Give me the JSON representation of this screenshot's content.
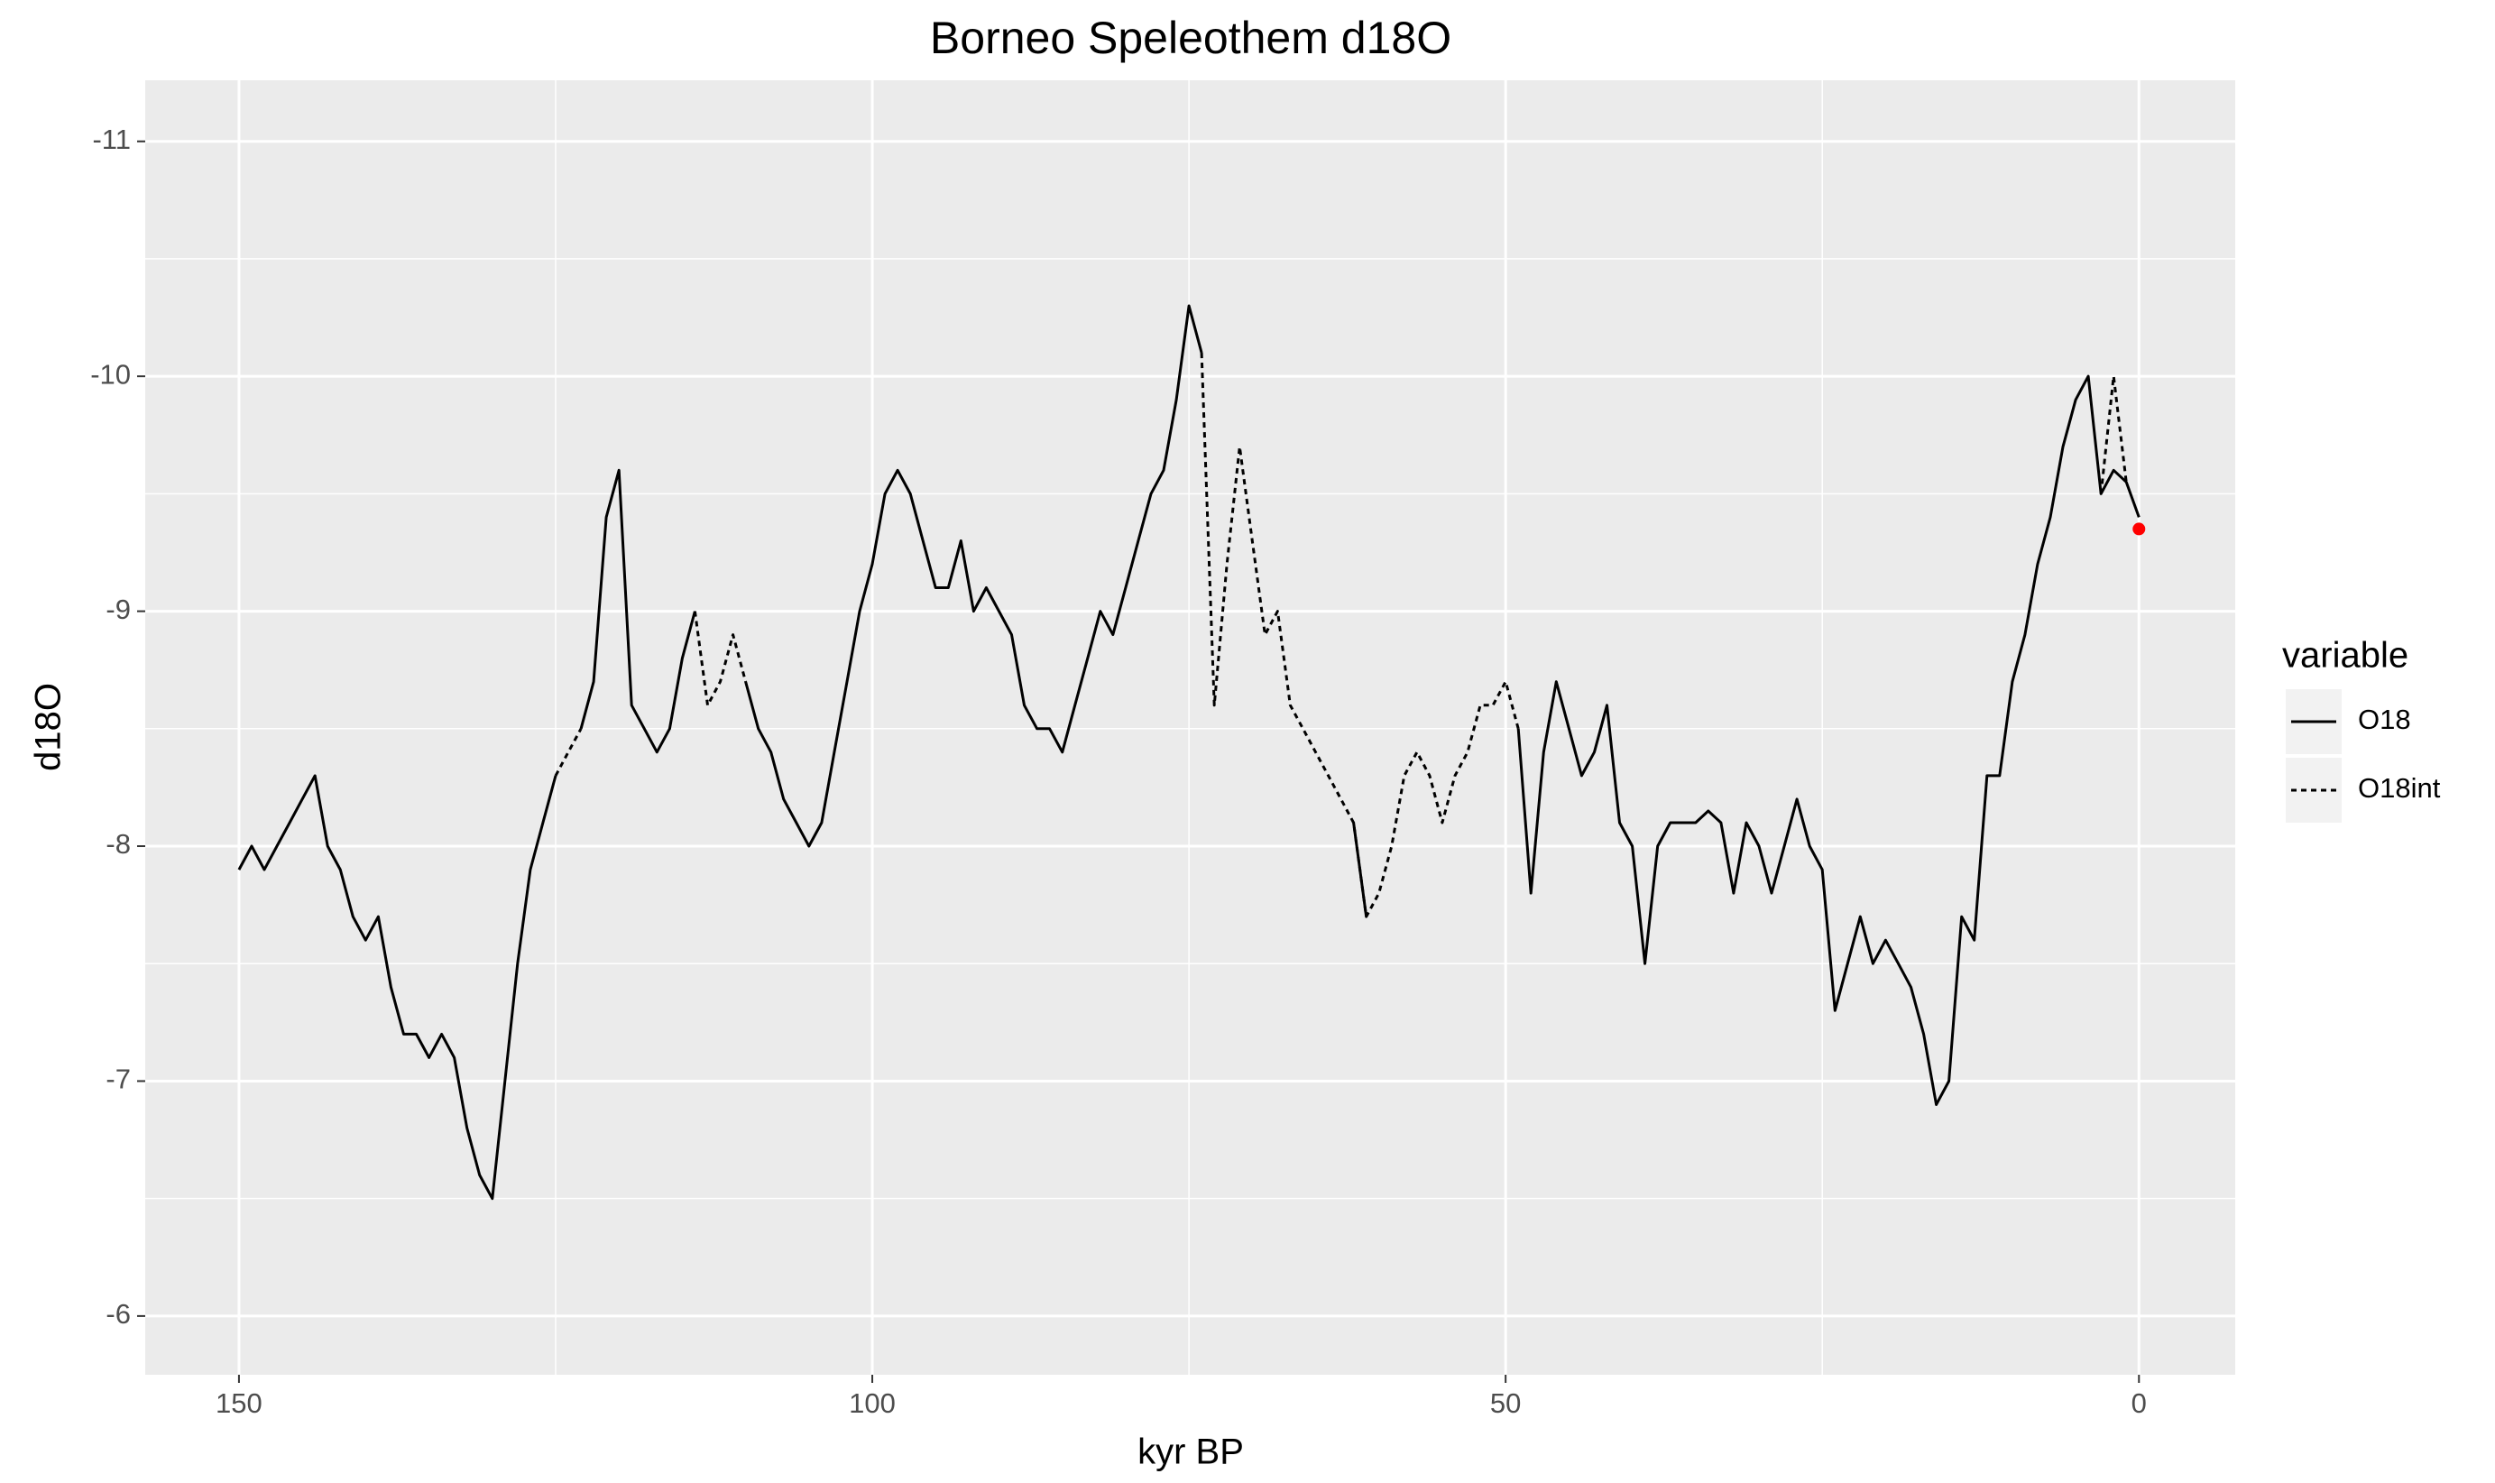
{
  "chart_data": {
    "type": "line",
    "title": "Borneo Speleothem d18O",
    "x_label": "kyr BP",
    "y_label": "d18O",
    "legend_title": "variable",
    "x": [
      150,
      149,
      148,
      147,
      146,
      145,
      144,
      143,
      142,
      141,
      140,
      139,
      138,
      137,
      136,
      135,
      134,
      133,
      132,
      131,
      130,
      129,
      128,
      127,
      126,
      125,
      124,
      123,
      122,
      121,
      120,
      119,
      118,
      117,
      116,
      115,
      114,
      113,
      112,
      111,
      110,
      109,
      108,
      107,
      106,
      105,
      104,
      103,
      102,
      101,
      100,
      99,
      98,
      97,
      96,
      95,
      94,
      93,
      92,
      91,
      90,
      89,
      88,
      87,
      86,
      85,
      84,
      83,
      82,
      81,
      80,
      79,
      78,
      77,
      76,
      75,
      74,
      73,
      72,
      71,
      70,
      69,
      68,
      67,
      66,
      65,
      64,
      63,
      62,
      61,
      60,
      59,
      58,
      57,
      56,
      55,
      54,
      53,
      52,
      51,
      50,
      49,
      48,
      47,
      46,
      45,
      44,
      43,
      42,
      41,
      40,
      39,
      38,
      37,
      36,
      35,
      34,
      33,
      32,
      31,
      30,
      29,
      28,
      27,
      26,
      25,
      24,
      23,
      22,
      21,
      20,
      19,
      18,
      17,
      16,
      15,
      14,
      13,
      12,
      11,
      10,
      9,
      8,
      7,
      6,
      5,
      4,
      3,
      2,
      1,
      0
    ],
    "series": [
      {
        "name": "O18",
        "color": "#000000",
        "dash": "solid",
        "values": [
          -7.9,
          -8.0,
          -7.9,
          -8.0,
          -8.1,
          -8.2,
          -8.3,
          -8.0,
          -7.9,
          -7.7,
          -7.6,
          -7.7,
          -7.4,
          -7.2,
          -7.2,
          -7.1,
          -7.2,
          -7.1,
          -6.8,
          -6.6,
          -6.5,
          -7.0,
          -7.5,
          -7.9,
          -8.1,
          -8.3,
          null,
          -8.5,
          -8.7,
          -9.4,
          -9.6,
          -8.6,
          -8.5,
          -8.4,
          -8.5,
          -8.8,
          -9.0,
          null,
          null,
          null,
          -8.7,
          -8.5,
          -8.4,
          -8.2,
          -8.1,
          -8.0,
          -8.1,
          -8.4,
          -8.7,
          -9.0,
          -9.2,
          -9.5,
          -9.6,
          -9.5,
          -9.3,
          -9.1,
          -9.1,
          -9.3,
          -9.0,
          -9.1,
          -9.0,
          -8.9,
          -8.6,
          -8.5,
          -8.5,
          -8.4,
          -8.6,
          -8.8,
          -9.0,
          -8.9,
          -9.1,
          -9.3,
          -9.5,
          -9.6,
          -9.9,
          -10.3,
          -10.1,
          null,
          null,
          null,
          null,
          null,
          null,
          null,
          null,
          null,
          null,
          null,
          -8.1,
          -7.7,
          null,
          null,
          null,
          null,
          null,
          null,
          null,
          null,
          null,
          null,
          null,
          -8.5,
          -7.8,
          -8.4,
          -8.7,
          -8.5,
          -8.3,
          -8.4,
          -8.6,
          -8.1,
          -8.0,
          -7.5,
          -8.0,
          -8.1,
          -8.1,
          -8.1,
          -8.15,
          -8.1,
          -7.8,
          -8.1,
          -8.0,
          -7.8,
          -8.0,
          -8.2,
          -8.0,
          -7.9,
          -7.3,
          -7.5,
          -7.7,
          -7.5,
          -7.6,
          -7.5,
          -7.4,
          -7.2,
          -6.9,
          -7.0,
          -7.7,
          -7.6,
          -8.3,
          -8.3,
          -8.7,
          -8.9,
          -9.2,
          -9.4,
          -9.7,
          -9.9,
          -10.0,
          -9.5,
          -9.6,
          -9.55,
          -9.4
        ]
      },
      {
        "name": "O18int",
        "color": "#000000",
        "dash": "dotted",
        "values": [
          null,
          null,
          null,
          null,
          null,
          null,
          null,
          null,
          null,
          null,
          null,
          null,
          null,
          null,
          null,
          null,
          null,
          null,
          null,
          null,
          null,
          null,
          null,
          null,
          null,
          -8.3,
          -8.4,
          -8.5,
          null,
          null,
          null,
          null,
          null,
          null,
          null,
          null,
          -9.0,
          -8.6,
          -8.7,
          -8.9,
          -8.7,
          null,
          null,
          null,
          null,
          null,
          null,
          null,
          null,
          null,
          null,
          null,
          null,
          null,
          null,
          null,
          null,
          null,
          null,
          null,
          null,
          null,
          null,
          null,
          null,
          null,
          null,
          null,
          null,
          null,
          null,
          null,
          null,
          null,
          null,
          null,
          -10.1,
          -8.6,
          -9.2,
          -9.7,
          -9.3,
          -8.9,
          -9.0,
          -8.6,
          -8.5,
          -8.4,
          -8.3,
          -8.2,
          -8.1,
          -7.7,
          -7.8,
          -8.0,
          -8.3,
          -8.4,
          -8.3,
          -8.1,
          -8.3,
          -8.4,
          -8.6,
          -8.6,
          -8.7,
          -8.5,
          null,
          null,
          null,
          null,
          null,
          null,
          null,
          null,
          null,
          null,
          null,
          null,
          null,
          null,
          null,
          null,
          null,
          null,
          null,
          null,
          null,
          null,
          null,
          null,
          null,
          null,
          null,
          null,
          null,
          null,
          null,
          null,
          null,
          null,
          null,
          null,
          null,
          null,
          null,
          null,
          null,
          null,
          null,
          null,
          null,
          -9.5,
          -10.0,
          -9.55,
          null
        ]
      }
    ],
    "highlight": {
      "x": 0,
      "y": -9.35,
      "color": "#ff0000"
    },
    "xlim": [
      157.4,
      -7.6
    ],
    "xticks": [
      150,
      100,
      50,
      0
    ],
    "ylim": [
      -5.75,
      -11.26
    ],
    "yticks": [
      -11,
      -10,
      -9,
      -8,
      -7,
      -6
    ],
    "grid": true,
    "legend_position": "right"
  }
}
